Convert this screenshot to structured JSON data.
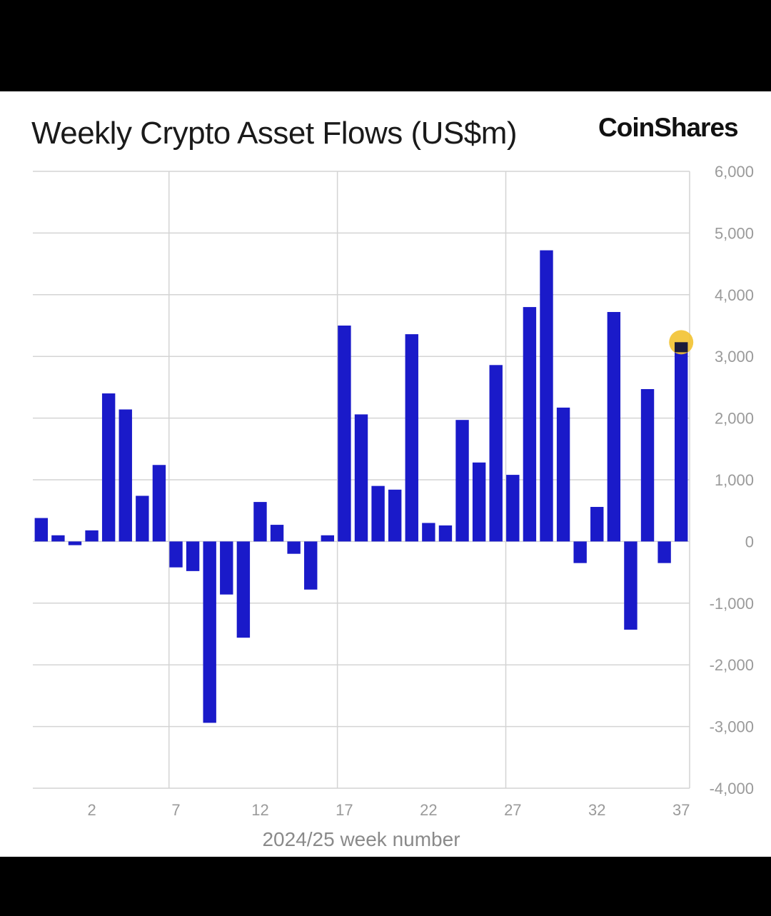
{
  "header": {
    "title": "Weekly Crypto Asset Flows (US$m)",
    "logo": "CoinShares"
  },
  "colors": {
    "bar": "#1a1ac9",
    "grid": "#d4d4d4",
    "highlight": "#f2c230",
    "highlight_bar": "#1b1b3a"
  },
  "chart_data": {
    "type": "bar",
    "title": "Weekly Crypto Asset Flows (US$m)",
    "xlabel": "2024/25 week number",
    "ylabel": "",
    "ylim": [
      -4000,
      6000
    ],
    "yticks": [
      6000,
      5000,
      4000,
      3000,
      2000,
      1000,
      0,
      -1000,
      -2000,
      -3000,
      -4000
    ],
    "ytick_labels": [
      "6,000",
      "5,000",
      "4,000",
      "3,000",
      "2,000",
      "1,000",
      "0",
      "-1,000",
      "-2,000",
      "-3,000",
      "-4,000"
    ],
    "xticks": [
      2,
      7,
      12,
      17,
      22,
      27,
      32,
      37
    ],
    "xtick_labels": [
      "2",
      "7",
      "12",
      "17",
      "22",
      "27",
      "32",
      "37"
    ],
    "categories": [
      -1,
      0,
      1,
      2,
      3,
      4,
      5,
      6,
      7,
      8,
      9,
      10,
      11,
      12,
      13,
      14,
      15,
      16,
      17,
      18,
      19,
      20,
      21,
      22,
      23,
      24,
      25,
      26,
      27,
      28,
      29,
      30,
      31,
      32,
      33,
      34,
      35,
      36,
      37
    ],
    "values": [
      380,
      100,
      -60,
      180,
      2400,
      2140,
      740,
      1240,
      -420,
      -480,
      -2940,
      -860,
      -1560,
      640,
      270,
      -200,
      -780,
      100,
      3500,
      2060,
      900,
      840,
      3360,
      300,
      260,
      1970,
      1280,
      2860,
      1080,
      3800,
      4720,
      2170,
      -350,
      560,
      3720,
      -1430,
      2470,
      -350,
      3230
    ],
    "highlight_week": 37,
    "grid": true,
    "legend": "none"
  }
}
